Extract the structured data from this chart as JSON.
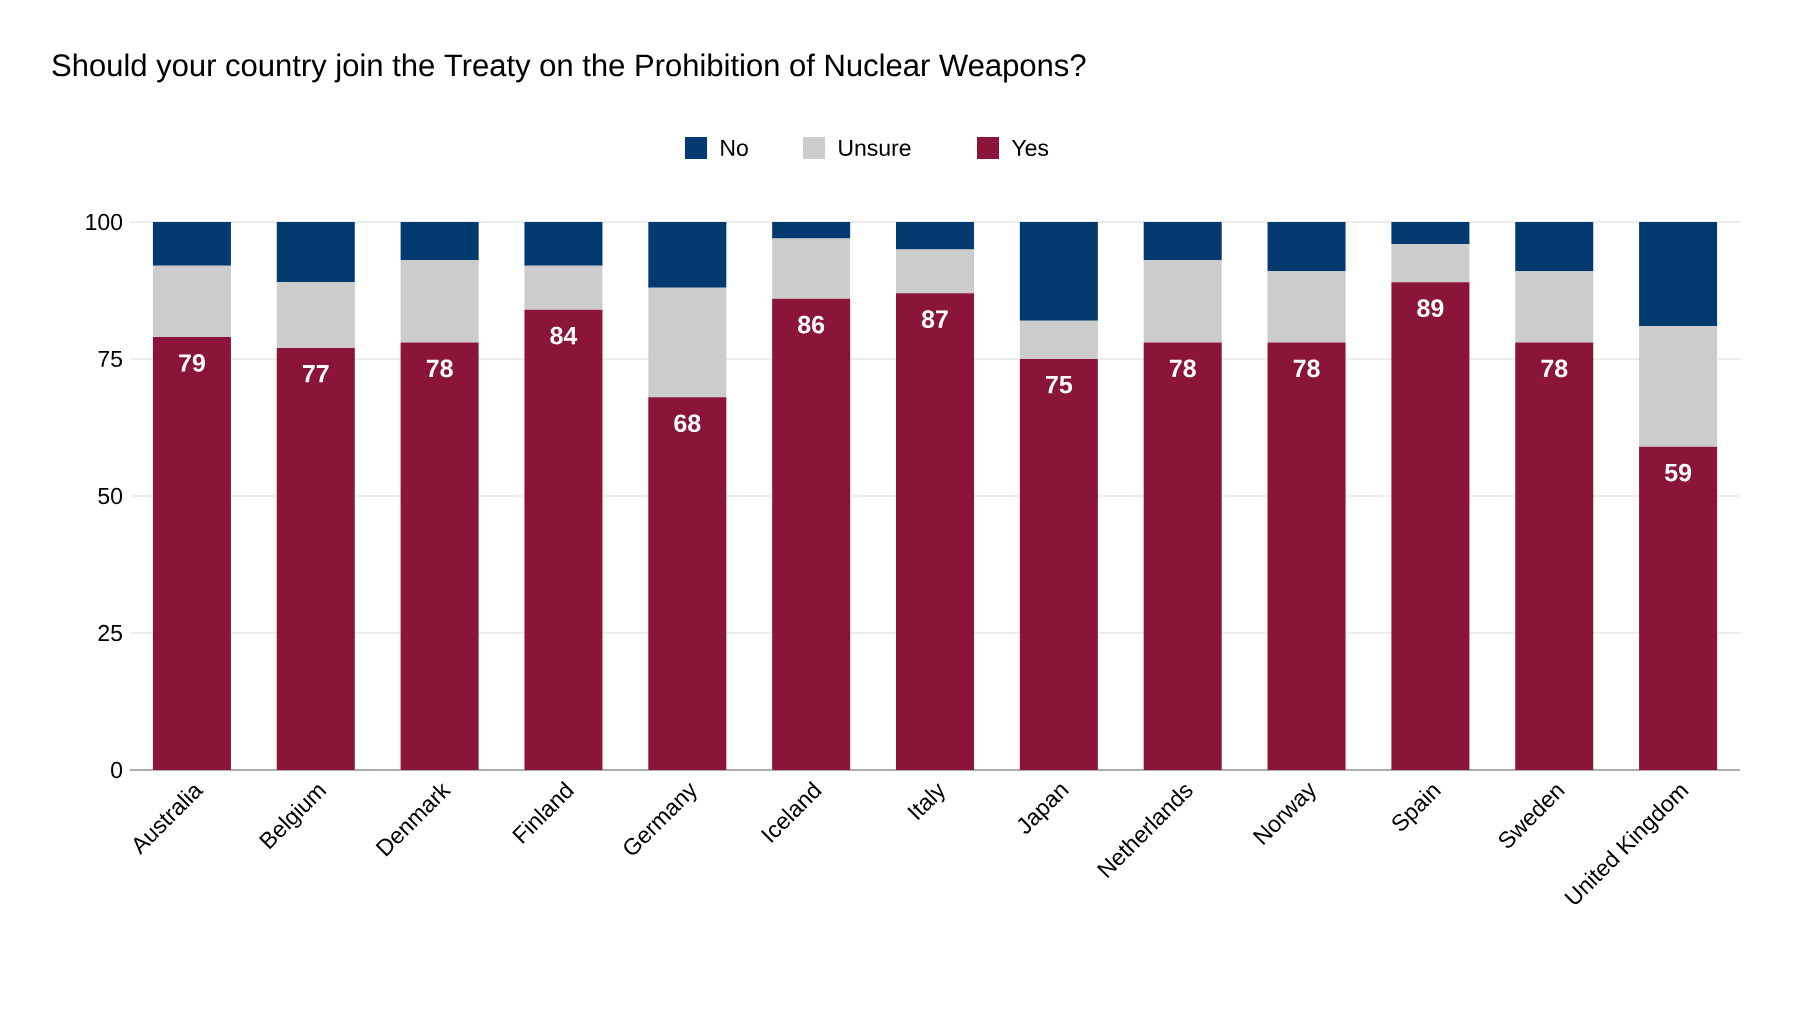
{
  "chart_data": {
    "type": "bar",
    "title": "Should your country join the Treaty on the Prohibition of Nuclear Weapons?",
    "categories": [
      "Australia",
      "Belgium",
      "Denmark",
      "Finland",
      "Germany",
      "Iceland",
      "Italy",
      "Japan",
      "Netherlands",
      "Norway",
      "Spain",
      "Sweden",
      "United Kingdom"
    ],
    "stacked": true,
    "legend": "top",
    "grid": "y",
    "ylim": [
      0,
      100
    ],
    "yticks": [
      0,
      25,
      50,
      75,
      100
    ],
    "series": [
      {
        "name": "Yes",
        "color": "#8a1538",
        "values": [
          79,
          77,
          78,
          84,
          68,
          86,
          87,
          75,
          78,
          78,
          89,
          78,
          59
        ],
        "value_labels": [
          "79",
          "77",
          "78",
          "84",
          "68",
          "86",
          "87",
          "75",
          "78",
          "78",
          "89",
          "78",
          "59"
        ]
      },
      {
        "name": "Unsure",
        "color": "#cccccc",
        "values": [
          13,
          12,
          15,
          8,
          20,
          11,
          8,
          7,
          15,
          13,
          7,
          13,
          22
        ]
      },
      {
        "name": "No",
        "color": "#033b70",
        "values": [
          8,
          11,
          7,
          8,
          12,
          3,
          5,
          18,
          7,
          9,
          4,
          9,
          19
        ]
      }
    ]
  }
}
